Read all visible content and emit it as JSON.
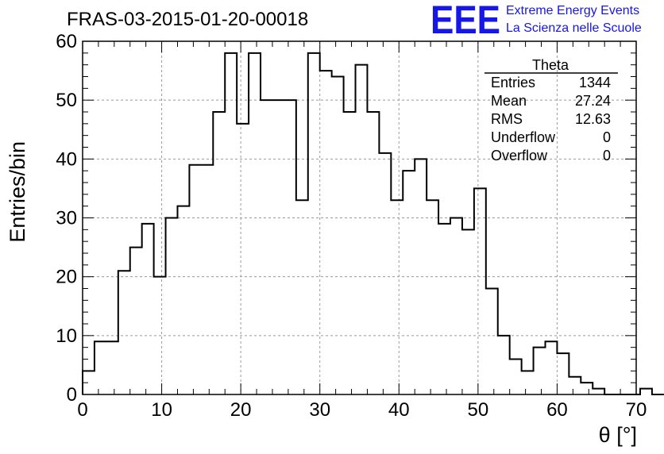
{
  "header": {
    "title": "FRAS-03-2015-01-20-00018",
    "logo_text": "EEE",
    "logo_line1": "Extreme Energy Events",
    "logo_line2": "La Scienza nelle Scuole",
    "logo_color": "#1616e6"
  },
  "stats_box": {
    "name": "Theta",
    "rows": [
      {
        "label": "Entries",
        "value": "1344"
      },
      {
        "label": "Mean",
        "value": "27.24"
      },
      {
        "label": "RMS",
        "value": "12.63"
      },
      {
        "label": "Underflow",
        "value": "0"
      },
      {
        "label": "Overflow",
        "value": "0"
      }
    ]
  },
  "chart_data": {
    "type": "histogram",
    "title": "FRAS-03-2015-01-20-00018",
    "xlabel": "θ [°]",
    "ylabel": "Entries/bin",
    "xlim": [
      0,
      70
    ],
    "ylim": [
      0,
      60
    ],
    "x_ticks": [
      0,
      10,
      20,
      30,
      40,
      50,
      60,
      70
    ],
    "y_ticks": [
      0,
      10,
      20,
      30,
      40,
      50,
      60
    ],
    "grid": true,
    "bin_width": 1.5,
    "bin_start": 0,
    "values": [
      4,
      9,
      9,
      21,
      25,
      29,
      20,
      30,
      32,
      39,
      39,
      48,
      58,
      46,
      58,
      50,
      50,
      50,
      33,
      58,
      55,
      54,
      48,
      56,
      48,
      41,
      33,
      38,
      40,
      33,
      29,
      30,
      28,
      35,
      18,
      10,
      6,
      4,
      8,
      9,
      7,
      3,
      2,
      1,
      0,
      0,
      0,
      1,
      0
    ]
  }
}
